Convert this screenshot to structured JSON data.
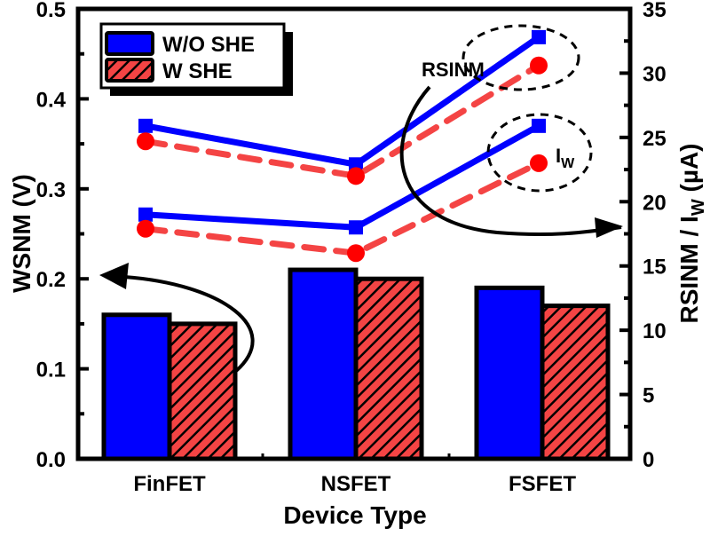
{
  "chart_data": {
    "type": "bar+line (dual axis)",
    "title": "",
    "xlabel": "Device Type",
    "ylabel_left": "WSNM (V)",
    "ylabel_right": "RSINM / I_W (µA)",
    "ylabel_right_parts": {
      "main": "RSINM / I",
      "sub": "W",
      "unit": " (µA)"
    },
    "categories": [
      "FinFET",
      "NSFET",
      "FSFET"
    ],
    "ylim_left": [
      0,
      0.5
    ],
    "ylim_right": [
      0,
      35
    ],
    "left_ticks": [
      "0.0",
      "0.1",
      "0.2",
      "0.3",
      "0.4",
      "0.5"
    ],
    "right_ticks": [
      "0",
      "5",
      "10",
      "15",
      "20",
      "25",
      "30",
      "35"
    ],
    "grid": false,
    "legend_position": "upper-left",
    "bars_wsnm": [
      {
        "name": "W/O SHE",
        "values": [
          0.16,
          0.21,
          0.19
        ],
        "color": "#0000ff",
        "pattern": "solid"
      },
      {
        "name": "W SHE",
        "values": [
          0.15,
          0.2,
          0.17
        ],
        "color": "#f44444",
        "pattern": "hatched"
      }
    ],
    "lines_right_axis": [
      {
        "name": "RSINM W/O SHE",
        "values": [
          25.9,
          22.9,
          32.8
        ],
        "color": "#0000ff",
        "marker": "square",
        "style": "solid"
      },
      {
        "name": "RSINM W SHE",
        "values": [
          24.7,
          22.0,
          30.6
        ],
        "color": "#f44444",
        "marker": "circle",
        "style": "dashed"
      },
      {
        "name": "I_W W/O SHE",
        "values": [
          19.0,
          18.0,
          25.9
        ],
        "color": "#0000ff",
        "marker": "square",
        "style": "solid"
      },
      {
        "name": "I_W W SHE",
        "values": [
          17.9,
          16.0,
          23.0
        ],
        "color": "#f44444",
        "marker": "circle",
        "style": "dashed"
      }
    ],
    "annotations": [
      {
        "text": "RSINM",
        "target": "FSFET RSINM points (dashed ellipse)"
      },
      {
        "text": "I_W",
        "parts": {
          "main": "I",
          "sub": "W"
        },
        "target": "FSFET I_W points (dashed ellipse)"
      },
      {
        "text": "arrow to left axis",
        "target": "bars → WSNM (V)"
      },
      {
        "text": "arrow to right axis",
        "target": "lines → RSINM / I_W (µA)"
      }
    ]
  },
  "legend": {
    "items": [
      {
        "label": "W/O SHE",
        "color": "#0000ff"
      },
      {
        "label": "W SHE",
        "color": "#f44444"
      }
    ]
  },
  "colors": {
    "blue": "#0000ff",
    "red": "#f44444",
    "redMarker": "#ff0000",
    "black": "#000000"
  }
}
